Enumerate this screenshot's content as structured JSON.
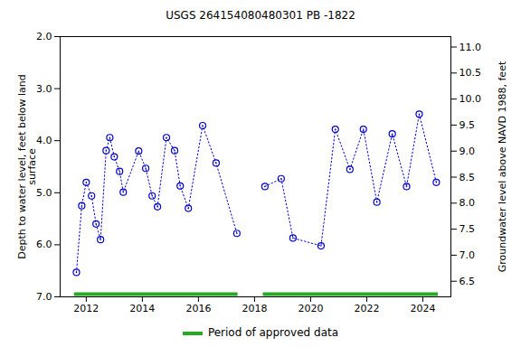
{
  "chart_data": {
    "type": "line",
    "title": "USGS 264154080480301 PB -1822",
    "x_label": null,
    "y_label": "Depth to water level, feet below land\nsurface",
    "y2_label": "Groundwater level above NAVD 1988, feet",
    "x": [
      2011.65,
      2011.84,
      2012.0,
      2012.19,
      2012.35,
      2012.51,
      2012.71,
      2012.84,
      2013.0,
      2013.19,
      2013.32,
      2013.87,
      2014.12,
      2014.35,
      2014.54,
      2014.86,
      2015.15,
      2015.35,
      2015.64,
      2016.15,
      2016.63,
      2017.37,
      2018.37,
      2018.95,
      2019.37,
      2020.37,
      2020.88,
      2021.4,
      2021.88,
      2022.36,
      2022.91,
      2023.42,
      2023.87,
      2024.48
    ],
    "series": [
      {
        "name": "Depth to water level",
        "color": "#0000cc",
        "marker": "circle",
        "line_style": "dotted",
        "values": [
          6.53,
          5.25,
          4.8,
          5.06,
          5.6,
          5.9,
          4.19,
          3.94,
          4.31,
          4.59,
          4.99,
          4.2,
          4.53,
          5.06,
          5.27,
          3.94,
          4.19,
          4.87,
          5.3,
          3.71,
          4.43,
          5.78,
          4.88,
          4.73,
          5.87,
          6.02,
          3.78,
          4.55,
          3.78,
          5.18,
          3.87,
          4.88,
          3.49,
          4.8
        ]
      }
    ],
    "approved_periods": [
      [
        2011.58,
        2017.41
      ],
      [
        2018.31,
        2024.55
      ]
    ],
    "approved_label": "Period of approved data",
    "approved_color": "#22aa22",
    "xlim": [
      2011.07,
      2025.0
    ],
    "xticks": [
      2012,
      2014,
      2016,
      2018,
      2020,
      2022,
      2024
    ],
    "ylim": [
      2,
      7
    ],
    "yticks": [
      {
        "value": 2,
        "label": "2.0"
      },
      {
        "value": 3,
        "label": "3.0"
      },
      {
        "value": 4,
        "label": "4.0"
      },
      {
        "value": 5,
        "label": "5.0"
      },
      {
        "value": 6,
        "label": "6.0"
      },
      {
        "value": 7,
        "label": "7.0"
      }
    ],
    "y2lim": [
      11.2,
      6.2
    ],
    "y2ticks": [
      {
        "value": 11,
        "label": "11.0"
      },
      {
        "value": 10.5,
        "label": "10.5"
      },
      {
        "value": 10,
        "label": "10.0"
      },
      {
        "value": 9.5,
        "label": "9.5"
      },
      {
        "value": 9,
        "label": "9.0"
      },
      {
        "value": 8.5,
        "label": "8.5"
      },
      {
        "value": 8,
        "label": "8.0"
      },
      {
        "value": 7.5,
        "label": "7.5"
      },
      {
        "value": 7,
        "label": "7.0"
      },
      {
        "value": 6.5,
        "label": "6.5"
      }
    ],
    "grid": false
  }
}
